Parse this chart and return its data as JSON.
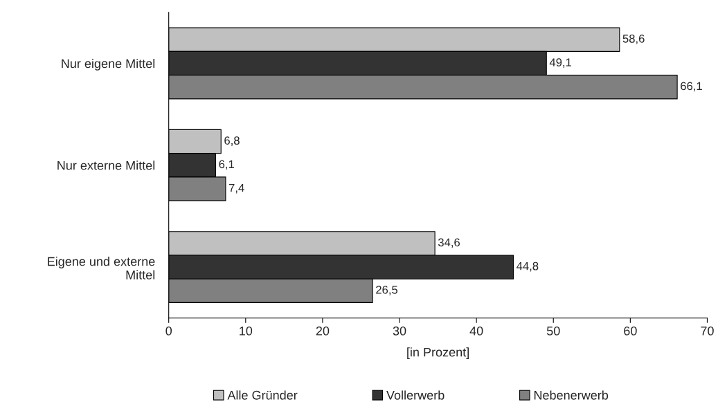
{
  "chart_data": {
    "type": "bar",
    "orientation": "horizontal",
    "xlabel": "[in Prozent]",
    "categories": [
      "Nur eigene Mittel",
      "Nur externe Mittel",
      "Eigene und externe Mittel"
    ],
    "series": [
      {
        "name": "Alle Gründer",
        "color": "#c0c0c0",
        "values": [
          58.6,
          6.8,
          34.6
        ],
        "value_labels": [
          "58,6",
          "6,8",
          "34,6"
        ]
      },
      {
        "name": "Vollerwerb",
        "color": "#333333",
        "values": [
          49.1,
          6.1,
          44.8
        ],
        "value_labels": [
          "49,1",
          "6,1",
          "44,8"
        ]
      },
      {
        "name": "Nebenerwerb",
        "color": "#808080",
        "values": [
          66.1,
          7.4,
          26.5
        ],
        "value_labels": [
          "66,1",
          "7,4",
          "26,5"
        ]
      }
    ],
    "xlim": [
      0,
      70
    ],
    "xticks": [
      0,
      10,
      20,
      30,
      40,
      50,
      60,
      70
    ],
    "grid": false,
    "legend": "bottom"
  }
}
